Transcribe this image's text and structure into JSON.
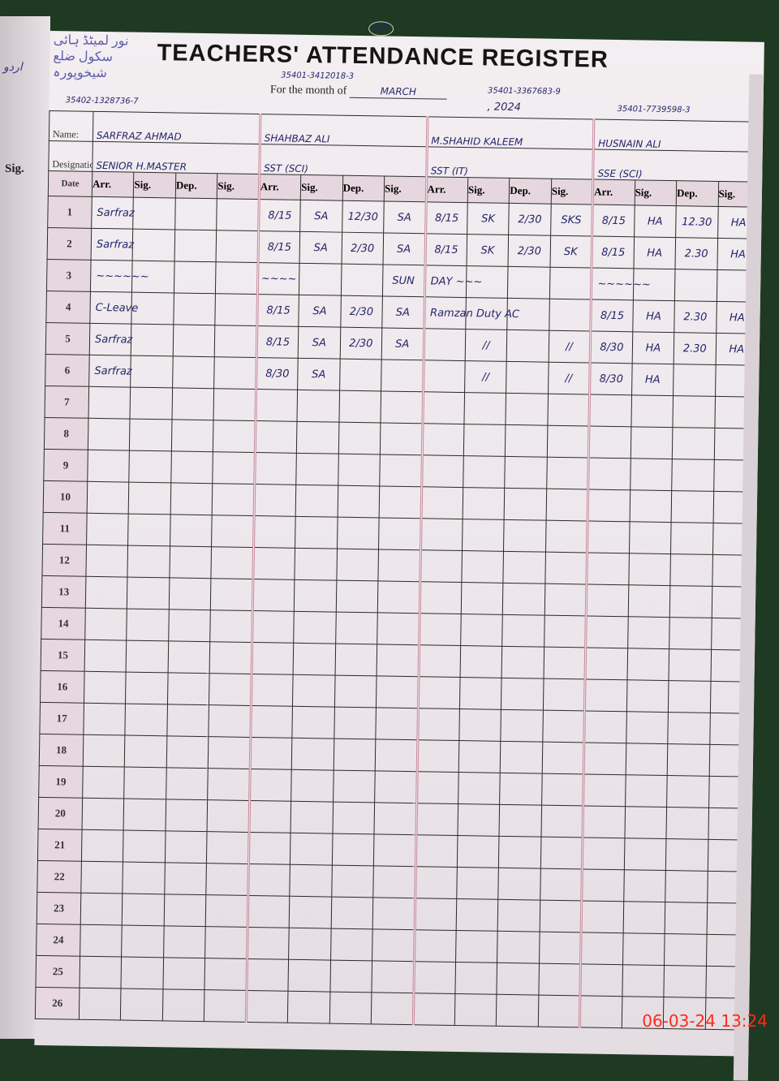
{
  "left_page": {
    "column_header": "Sig.",
    "urdu_text": "اردو"
  },
  "register": {
    "page_number": "17",
    "title": "TEACHERS' ATTENDANCE REGISTER",
    "stamp_text": "نور لمیٹڈ ہائی سکول ضلع شیخوپورہ",
    "month_label": "For the month of",
    "month": "MARCH",
    "year": ", 2024",
    "name_label": "Name:",
    "designation_label": "Designation:",
    "date_header": "Date",
    "column_headers": [
      "Arr.",
      "Sig.",
      "Dep.",
      "Sig."
    ]
  },
  "teachers": [
    {
      "number": "1",
      "cnic": "35402-1328736-7",
      "name": "SARFRAZ AHMAD",
      "designation": "SENIOR H.MASTER"
    },
    {
      "number": "2",
      "cnic": "35401-3412018-3",
      "name": "SHAHBAZ ALI",
      "designation": "SST (SCI)"
    },
    {
      "number": "3",
      "cnic": "35401-3367683-9",
      "name": "M.SHAHID KALEEM",
      "designation": "SST (IT)"
    },
    {
      "number": "4",
      "cnic": "35401-7739598-3",
      "name": "HUSNAIN ALI",
      "designation": "SSE (SCI)"
    }
  ],
  "dates": [
    "1",
    "2",
    "3",
    "4",
    "5",
    "6",
    "7",
    "8",
    "9",
    "10",
    "11",
    "12",
    "13",
    "14",
    "15",
    "16",
    "17",
    "18",
    "19",
    "20",
    "21",
    "22",
    "23",
    "24",
    "25",
    "26"
  ],
  "entries": {
    "1": [
      [
        "Sarfraz",
        "",
        "",
        ""
      ],
      [
        "8/15",
        "SA",
        "12/30",
        "SA"
      ],
      [
        "8/15",
        "SK",
        "2/30",
        "SKS"
      ],
      [
        "8/15",
        "HA",
        "12.30",
        "HA"
      ]
    ],
    "2": [
      [
        "Sarfraz",
        "",
        "",
        ""
      ],
      [
        "8/15",
        "SA",
        "2/30",
        "SA"
      ],
      [
        "8/15",
        "SK",
        "2/30",
        "SK"
      ],
      [
        "8/15",
        "HA",
        "2.30",
        "HA"
      ]
    ],
    "3": [
      [
        "~~~~~~",
        "",
        "",
        ""
      ],
      [
        "~~~~",
        "",
        "",
        "SUN"
      ],
      [
        "DAY ~~~",
        "",
        "",
        ""
      ],
      [
        "~~~~~~",
        "",
        "",
        ""
      ]
    ],
    "4": [
      [
        "C-Leave",
        "",
        "",
        ""
      ],
      [
        "8/15",
        "SA",
        "2/30",
        "SA"
      ],
      [
        "Ramzan Duty AC",
        "",
        "",
        ""
      ],
      [
        "8/15",
        "HA",
        "2.30",
        "HA"
      ]
    ],
    "5": [
      [
        "Sarfraz",
        "",
        "",
        ""
      ],
      [
        "8/15",
        "SA",
        "2/30",
        "SA"
      ],
      [
        "",
        "//",
        "",
        "//"
      ],
      [
        "8/30",
        "HA",
        "2.30",
        "HA"
      ]
    ],
    "6": [
      [
        "Sarfraz",
        "",
        "",
        ""
      ],
      [
        "8/30",
        "SA",
        "",
        ""
      ],
      [
        "",
        "//",
        "",
        "//"
      ],
      [
        "8/30",
        "HA",
        "",
        ""
      ]
    ]
  },
  "camera_timestamp": "06-03-24  13:24"
}
